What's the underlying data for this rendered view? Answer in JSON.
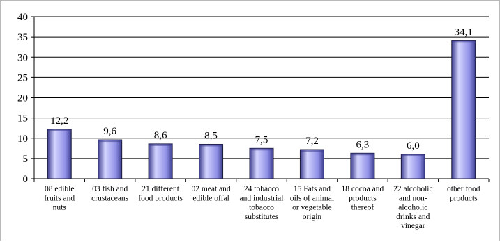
{
  "chart_data": {
    "type": "bar",
    "categories": [
      [
        "08 edible",
        "fruits and",
        "nuts"
      ],
      [
        "03 fish and",
        "crustaceans"
      ],
      [
        "21 different",
        "food products"
      ],
      [
        "02 meat and",
        "edible offal"
      ],
      [
        "24 tobacco",
        "and industrial",
        "tobacco",
        "substitutes"
      ],
      [
        "15 Fats and",
        "oils of animal",
        "or vegetable",
        "origin"
      ],
      [
        "18 cocoa and",
        "products",
        "thereof"
      ],
      [
        "22 alcoholic",
        "and non-",
        "alcoholic",
        "drinks and",
        "vinegar"
      ],
      [
        "other food",
        "products"
      ]
    ],
    "values": [
      12.2,
      9.6,
      8.6,
      8.5,
      7.5,
      7.2,
      6.3,
      6.0,
      34.1
    ],
    "data_labels": [
      "12,2",
      "9,6",
      "8,6",
      "8,5",
      "7,5",
      "7,2",
      "6,3",
      "6,0",
      "34,1"
    ],
    "yticks": [
      "0",
      "5",
      "10",
      "15",
      "20",
      "25",
      "30",
      "35",
      "40"
    ],
    "ylim": [
      0,
      40
    ],
    "grid": true,
    "legend": "none",
    "colors": {
      "bar_light": "#d4d4ff",
      "bar_mid": "#8f8fe6",
      "bar_dark": "#3d3d8f",
      "bar_outline": "#1b1b3a",
      "grid": "#000000",
      "axis": "#000000"
    }
  }
}
